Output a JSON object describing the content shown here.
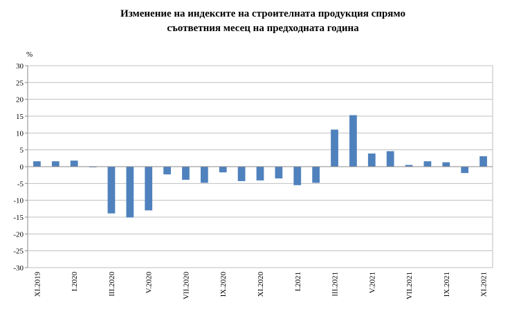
{
  "chart_data": {
    "type": "bar",
    "title": [
      "Изменение на индексите на строителната продукция спрямо",
      "съответния месец на предходната година"
    ],
    "y_label": "%",
    "categories": [
      "XI.2019",
      null,
      "I.2020",
      null,
      "III.2020",
      null,
      "V.2020",
      null,
      "VII.2020",
      null,
      "IX.2020",
      null,
      "XI.2020",
      null,
      "I.2021",
      null,
      "III.2021",
      null,
      "V.2021",
      null,
      "VII.2021",
      null,
      "IX.2021",
      null,
      "XI.2021"
    ],
    "values": [
      1.6,
      1.6,
      1.8,
      -0.2,
      -13.9,
      -15.1,
      -13.0,
      -2.3,
      -3.9,
      -4.8,
      -1.7,
      -4.3,
      -4.1,
      -3.5,
      -5.5,
      -4.8,
      11.0,
      15.3,
      3.9,
      4.6,
      0.5,
      1.6,
      1.3,
      -1.9,
      3.1
    ],
    "color": "#4f81bd",
    "ylim": [
      -30,
      30
    ],
    "yticks": [
      -30,
      -25,
      -20,
      -15,
      -10,
      -5,
      0,
      5,
      10,
      15,
      20,
      25,
      30
    ],
    "grid": true
  }
}
